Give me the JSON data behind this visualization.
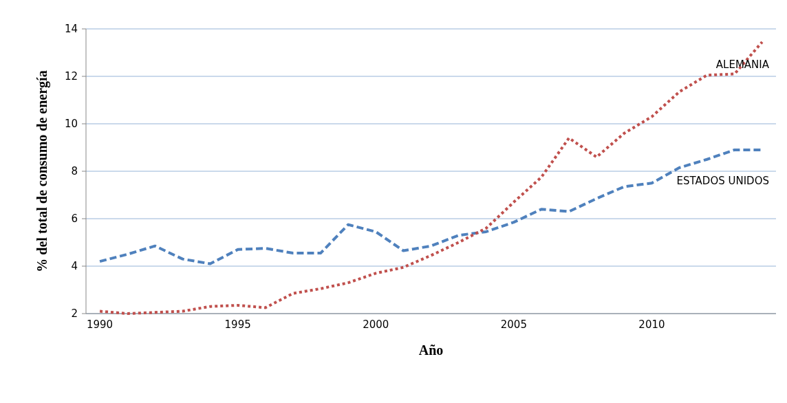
{
  "chart_data": {
    "type": "line",
    "xlabel": "Año",
    "ylabel": "% del total de consumo de energía",
    "categories": [
      "1990",
      null,
      null,
      null,
      null,
      "1995",
      null,
      null,
      null,
      null,
      "2000",
      null,
      null,
      null,
      null,
      "2005",
      null,
      null,
      null,
      null,
      "2010",
      null,
      null,
      null,
      null
    ],
    "series": [
      {
        "name": "ESTADOS UNIDOS",
        "color": "#4f81bd",
        "line_style": "dashed",
        "values": [
          4.2,
          4.5,
          4.85,
          4.3,
          4.1,
          4.7,
          4.75,
          4.55,
          4.55,
          5.75,
          5.45,
          4.65,
          4.85,
          5.3,
          5.45,
          5.85,
          6.4,
          6.3,
          6.85,
          7.35,
          7.5,
          8.15,
          8.5,
          8.9,
          8.9
        ]
      },
      {
        "name": "ALEMANIA",
        "color": "#c0504d",
        "line_style": "dotted",
        "values": [
          2.1,
          2.0,
          2.05,
          2.1,
          2.3,
          2.35,
          2.25,
          2.85,
          3.05,
          3.3,
          3.7,
          3.95,
          4.45,
          5.0,
          5.6,
          6.7,
          7.75,
          9.4,
          8.6,
          9.6,
          10.3,
          11.35,
          12.05,
          12.1,
          13.45
        ]
      }
    ],
    "ylim": [
      2,
      14
    ],
    "yticks": [
      2,
      4,
      6,
      8,
      10,
      12,
      14
    ],
    "grid": "y"
  }
}
